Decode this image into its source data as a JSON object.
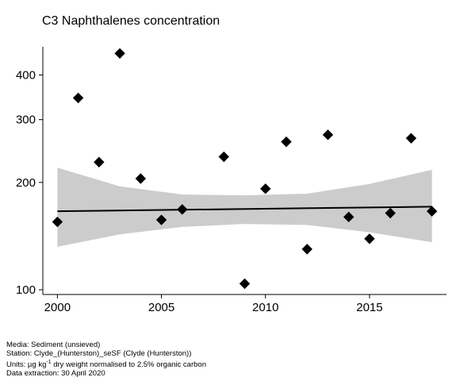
{
  "chart_data": {
    "type": "scatter",
    "title": "C3 Naphthalenes concentration",
    "xlabel": "",
    "ylabel": "",
    "y_scale": "log",
    "xlim": [
      1999.3,
      2018.7
    ],
    "ylim": [
      97,
      480
    ],
    "x_ticks": [
      2000,
      2005,
      2010,
      2015
    ],
    "y_ticks": [
      100,
      200,
      300,
      400
    ],
    "grid": false,
    "points": {
      "x": [
        2000,
        2001,
        2002,
        2003,
        2004,
        2005,
        2006,
        2008,
        2009,
        2010,
        2011,
        2012,
        2013,
        2014,
        2015,
        2016,
        2017,
        2018
      ],
      "y": [
        155,
        345,
        228,
        460,
        205,
        157,
        168,
        236,
        104,
        192,
        260,
        130,
        272,
        160,
        139,
        164,
        266,
        166
      ]
    },
    "trend": {
      "x": [
        2000,
        2018
      ],
      "y": [
        166,
        171
      ]
    },
    "confidence_band": {
      "x": [
        2000,
        2003,
        2006,
        2009,
        2012,
        2015,
        2018
      ],
      "lower": [
        132,
        143,
        150,
        153,
        152,
        145,
        136
      ],
      "upper": [
        220,
        195,
        185,
        184,
        186,
        198,
        217
      ]
    },
    "colors": {
      "points": "#000000",
      "trend": "#000000",
      "band": "#cccccc"
    }
  },
  "footer": {
    "media": "Media: Sediment (unsieved)",
    "station": "Station: Clyde_(Hunterston)_seSF (Clyde (Hunterston))",
    "units_prefix": "Units:  µg kg",
    "units_sup": "-1",
    "units_suffix": " dry weight normalised to 2.5% organic carbon",
    "extraction": "Data extraction: 30 April 2020"
  }
}
